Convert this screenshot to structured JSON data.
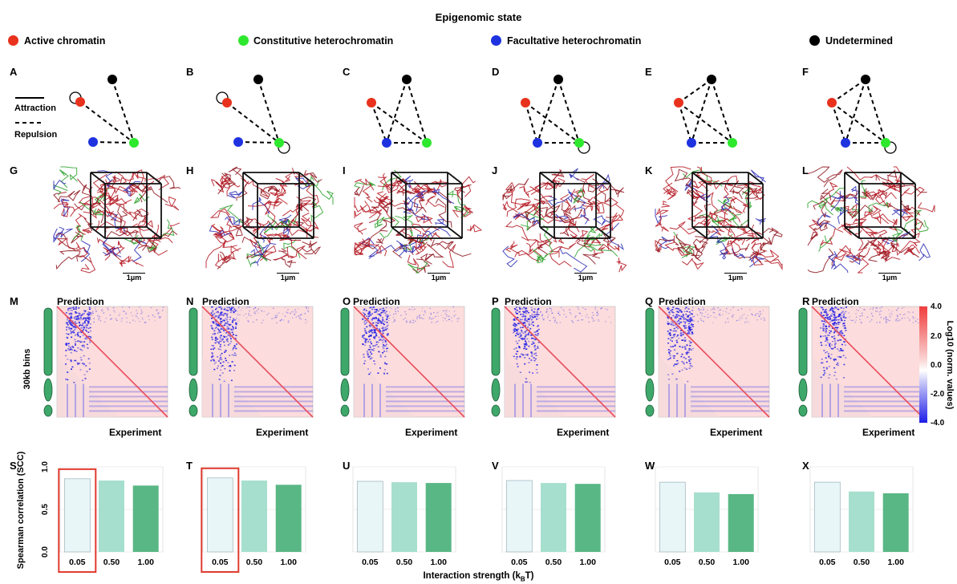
{
  "figure": {
    "title": "Epigenomic state",
    "legend": [
      {
        "label": "Active chromatin",
        "color": "#e8321e"
      },
      {
        "label": "Constitutive heterochromatin",
        "color": "#2ee82e"
      },
      {
        "label": "Facultative heterochromatin",
        "color": "#1e32e0"
      },
      {
        "label": "Undetermined",
        "color": "#000000"
      }
    ],
    "network_letters": [
      "A",
      "B",
      "C",
      "D",
      "E",
      "F"
    ],
    "network_key": {
      "attraction": "Attraction",
      "repulsion": "Repulsion"
    },
    "structure_letters": [
      "G",
      "H",
      "I",
      "J",
      "K",
      "L"
    ],
    "scale_bar_label": "1μm",
    "heatmap_letters": [
      "M",
      "N",
      "O",
      "P",
      "Q",
      "R"
    ],
    "heatmap_top_label": "Prediction",
    "heatmap_bottom_label": "Experiment",
    "heatmap_ylabel": "30kb bins",
    "colorbar": {
      "label": "Log10 (norm. values)",
      "ticks": [
        "4.0",
        "2.0",
        "0.0",
        "-2.0",
        "-4.0"
      ]
    },
    "bar_letters": [
      "S",
      "T",
      "U",
      "V",
      "W",
      "X"
    ],
    "bar_ylabel": "Spearman correlation (SCC)",
    "bar_xlabel": "Interaction strength (k",
    "bar_xlabel_sub": "B",
    "bar_xlabel_tail": "T)",
    "bar_yticks": [
      "0.0",
      "0.5",
      "1.0"
    ]
  },
  "chart_data": [
    {
      "type": "bar",
      "categories": [
        "0.05",
        "0.50",
        "1.00"
      ],
      "values": [
        0.86,
        0.84,
        0.78
      ],
      "ylim": [
        0,
        1
      ],
      "ylabel": "Spearman correlation (SCC)",
      "highlighted": "0.05"
    },
    {
      "type": "bar",
      "categories": [
        "0.05",
        "0.50",
        "1.00"
      ],
      "values": [
        0.87,
        0.84,
        0.79
      ],
      "ylim": [
        0,
        1
      ],
      "highlighted": "0.05"
    },
    {
      "type": "bar",
      "categories": [
        "0.05",
        "0.50",
        "1.00"
      ],
      "values": [
        0.83,
        0.82,
        0.81
      ],
      "ylim": [
        0,
        1
      ]
    },
    {
      "type": "bar",
      "categories": [
        "0.05",
        "0.50",
        "1.00"
      ],
      "values": [
        0.84,
        0.81,
        0.8
      ],
      "ylim": [
        0,
        1
      ]
    },
    {
      "type": "bar",
      "categories": [
        "0.05",
        "0.50",
        "1.00"
      ],
      "values": [
        0.82,
        0.7,
        0.68
      ],
      "ylim": [
        0,
        1
      ]
    },
    {
      "type": "bar",
      "categories": [
        "0.05",
        "0.50",
        "1.00"
      ],
      "values": [
        0.82,
        0.71,
        0.69
      ],
      "ylim": [
        0,
        1
      ]
    }
  ],
  "bar_colors": [
    "#e8f6f8",
    "#a6dfcd",
    "#59b785"
  ],
  "highlight_color": "#e03a2e"
}
